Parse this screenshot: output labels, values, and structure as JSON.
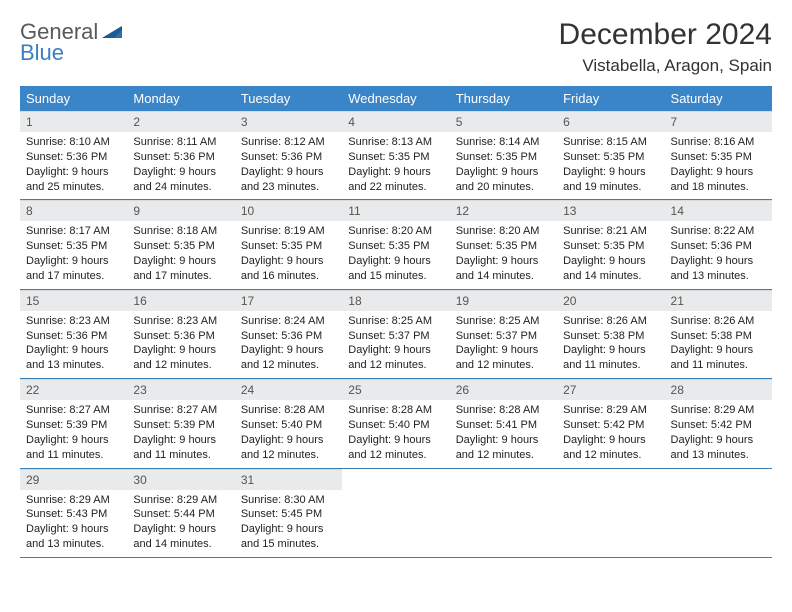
{
  "logo": {
    "line1": "General",
    "line2": "Blue"
  },
  "title": "December 2024",
  "location": "Vistabella, Aragon, Spain",
  "colors": {
    "header_bg": "#3a85c7",
    "header_text": "#ffffff",
    "daynum_bg": "#e9eaeb",
    "daynum_text": "#555555",
    "row_border": "#3a7fb0",
    "logo_gray": "#555a5f",
    "logo_blue": "#3a7fc2",
    "body_text": "#222222"
  },
  "fonts": {
    "title_size_pt": 22,
    "location_size_pt": 13,
    "weekday_size_pt": 10,
    "daynum_size_pt": 9,
    "body_size_pt": 8
  },
  "weekdays": [
    "Sunday",
    "Monday",
    "Tuesday",
    "Wednesday",
    "Thursday",
    "Friday",
    "Saturday"
  ],
  "weeks": [
    [
      {
        "n": "1",
        "sr": "8:10 AM",
        "ss": "5:36 PM",
        "dl1": "Daylight: 9 hours",
        "dl2": "and 25 minutes."
      },
      {
        "n": "2",
        "sr": "8:11 AM",
        "ss": "5:36 PM",
        "dl1": "Daylight: 9 hours",
        "dl2": "and 24 minutes."
      },
      {
        "n": "3",
        "sr": "8:12 AM",
        "ss": "5:36 PM",
        "dl1": "Daylight: 9 hours",
        "dl2": "and 23 minutes."
      },
      {
        "n": "4",
        "sr": "8:13 AM",
        "ss": "5:35 PM",
        "dl1": "Daylight: 9 hours",
        "dl2": "and 22 minutes."
      },
      {
        "n": "5",
        "sr": "8:14 AM",
        "ss": "5:35 PM",
        "dl1": "Daylight: 9 hours",
        "dl2": "and 20 minutes."
      },
      {
        "n": "6",
        "sr": "8:15 AM",
        "ss": "5:35 PM",
        "dl1": "Daylight: 9 hours",
        "dl2": "and 19 minutes."
      },
      {
        "n": "7",
        "sr": "8:16 AM",
        "ss": "5:35 PM",
        "dl1": "Daylight: 9 hours",
        "dl2": "and 18 minutes."
      }
    ],
    [
      {
        "n": "8",
        "sr": "8:17 AM",
        "ss": "5:35 PM",
        "dl1": "Daylight: 9 hours",
        "dl2": "and 17 minutes."
      },
      {
        "n": "9",
        "sr": "8:18 AM",
        "ss": "5:35 PM",
        "dl1": "Daylight: 9 hours",
        "dl2": "and 17 minutes."
      },
      {
        "n": "10",
        "sr": "8:19 AM",
        "ss": "5:35 PM",
        "dl1": "Daylight: 9 hours",
        "dl2": "and 16 minutes."
      },
      {
        "n": "11",
        "sr": "8:20 AM",
        "ss": "5:35 PM",
        "dl1": "Daylight: 9 hours",
        "dl2": "and 15 minutes."
      },
      {
        "n": "12",
        "sr": "8:20 AM",
        "ss": "5:35 PM",
        "dl1": "Daylight: 9 hours",
        "dl2": "and 14 minutes."
      },
      {
        "n": "13",
        "sr": "8:21 AM",
        "ss": "5:35 PM",
        "dl1": "Daylight: 9 hours",
        "dl2": "and 14 minutes."
      },
      {
        "n": "14",
        "sr": "8:22 AM",
        "ss": "5:36 PM",
        "dl1": "Daylight: 9 hours",
        "dl2": "and 13 minutes."
      }
    ],
    [
      {
        "n": "15",
        "sr": "8:23 AM",
        "ss": "5:36 PM",
        "dl1": "Daylight: 9 hours",
        "dl2": "and 13 minutes."
      },
      {
        "n": "16",
        "sr": "8:23 AM",
        "ss": "5:36 PM",
        "dl1": "Daylight: 9 hours",
        "dl2": "and 12 minutes."
      },
      {
        "n": "17",
        "sr": "8:24 AM",
        "ss": "5:36 PM",
        "dl1": "Daylight: 9 hours",
        "dl2": "and 12 minutes."
      },
      {
        "n": "18",
        "sr": "8:25 AM",
        "ss": "5:37 PM",
        "dl1": "Daylight: 9 hours",
        "dl2": "and 12 minutes."
      },
      {
        "n": "19",
        "sr": "8:25 AM",
        "ss": "5:37 PM",
        "dl1": "Daylight: 9 hours",
        "dl2": "and 12 minutes."
      },
      {
        "n": "20",
        "sr": "8:26 AM",
        "ss": "5:38 PM",
        "dl1": "Daylight: 9 hours",
        "dl2": "and 11 minutes."
      },
      {
        "n": "21",
        "sr": "8:26 AM",
        "ss": "5:38 PM",
        "dl1": "Daylight: 9 hours",
        "dl2": "and 11 minutes."
      }
    ],
    [
      {
        "n": "22",
        "sr": "8:27 AM",
        "ss": "5:39 PM",
        "dl1": "Daylight: 9 hours",
        "dl2": "and 11 minutes."
      },
      {
        "n": "23",
        "sr": "8:27 AM",
        "ss": "5:39 PM",
        "dl1": "Daylight: 9 hours",
        "dl2": "and 11 minutes."
      },
      {
        "n": "24",
        "sr": "8:28 AM",
        "ss": "5:40 PM",
        "dl1": "Daylight: 9 hours",
        "dl2": "and 12 minutes."
      },
      {
        "n": "25",
        "sr": "8:28 AM",
        "ss": "5:40 PM",
        "dl1": "Daylight: 9 hours",
        "dl2": "and 12 minutes."
      },
      {
        "n": "26",
        "sr": "8:28 AM",
        "ss": "5:41 PM",
        "dl1": "Daylight: 9 hours",
        "dl2": "and 12 minutes."
      },
      {
        "n": "27",
        "sr": "8:29 AM",
        "ss": "5:42 PM",
        "dl1": "Daylight: 9 hours",
        "dl2": "and 12 minutes."
      },
      {
        "n": "28",
        "sr": "8:29 AM",
        "ss": "5:42 PM",
        "dl1": "Daylight: 9 hours",
        "dl2": "and 13 minutes."
      }
    ],
    [
      {
        "n": "29",
        "sr": "8:29 AM",
        "ss": "5:43 PM",
        "dl1": "Daylight: 9 hours",
        "dl2": "and 13 minutes."
      },
      {
        "n": "30",
        "sr": "8:29 AM",
        "ss": "5:44 PM",
        "dl1": "Daylight: 9 hours",
        "dl2": "and 14 minutes."
      },
      {
        "n": "31",
        "sr": "8:30 AM",
        "ss": "5:45 PM",
        "dl1": "Daylight: 9 hours",
        "dl2": "and 15 minutes."
      },
      null,
      null,
      null,
      null
    ]
  ]
}
